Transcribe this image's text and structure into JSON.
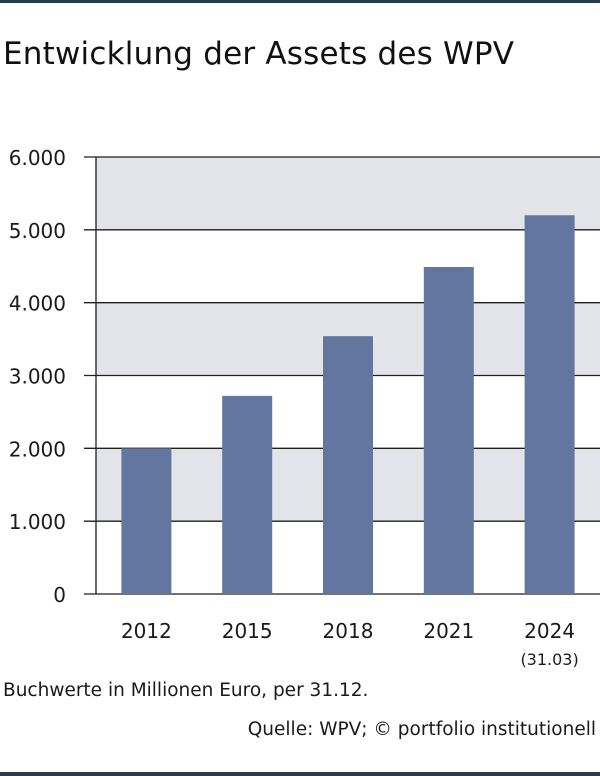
{
  "title": "Entwicklung der Assets des WPV",
  "footnote": "Buchwerte in Millionen Euro, per 31.12.",
  "source": "Quelle: WPV; © portfolio institutionell",
  "colors": {
    "bar": "#6276a0",
    "band": "#e3e3ea",
    "grid": "#1f1f1f",
    "text": "#1a1a1a",
    "rule": "#2b3a4d"
  },
  "chart_data": {
    "type": "bar",
    "categories": [
      "2012",
      "2015",
      "2018",
      "2021",
      "2024"
    ],
    "category_notes": [
      "",
      "",
      "",
      "",
      "(31.03)"
    ],
    "values": [
      2000,
      2720,
      3540,
      4490,
      5200
    ],
    "ylim": [
      0,
      6000
    ],
    "yticks": [
      "0",
      "1.000",
      "2.000",
      "3.000",
      "4.000",
      "5.000",
      "6.000"
    ],
    "grid": true,
    "shaded_bands": [
      [
        1000,
        2000
      ],
      [
        3000,
        4000
      ],
      [
        5000,
        6000
      ]
    ],
    "xlabel": "",
    "ylabel": ""
  }
}
